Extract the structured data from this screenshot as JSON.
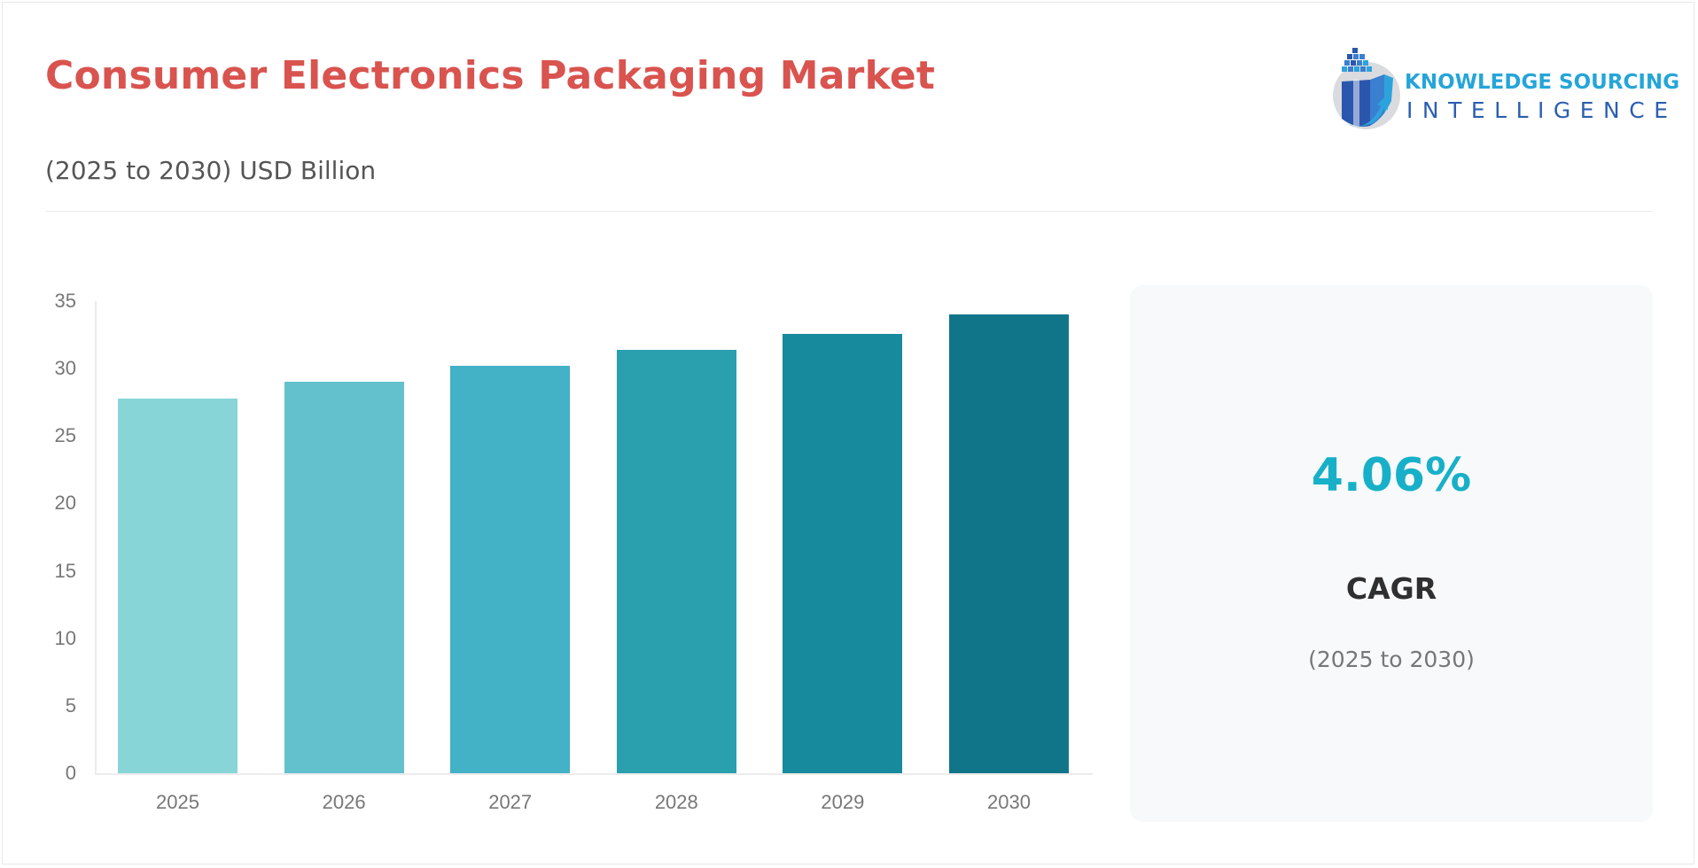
{
  "header": {
    "title": "Consumer Electronics Packaging Market",
    "subtitle": "(2025 to 2030) USD Billion",
    "title_color": "#d9534f"
  },
  "logo": {
    "line1": "KNOWLEDGE SOURCING",
    "line2": "INTELLIGENCE",
    "icon": "globe-bar-chart-arrow-icon"
  },
  "chart_data": {
    "type": "bar",
    "title": "Consumer Electronics Packaging Market",
    "subtitle": "(2025 to 2030) USD Billion",
    "xlabel": "",
    "ylabel": "USD Billion",
    "categories": [
      "2025",
      "2026",
      "2027",
      "2028",
      "2029",
      "2030"
    ],
    "values": [
      27.8,
      29.0,
      30.2,
      31.4,
      32.6,
      34.0
    ],
    "colors": [
      "#88d5d8",
      "#62c1cd",
      "#43b1c6",
      "#2a9fae",
      "#188a9d",
      "#11758a"
    ],
    "yticks": [
      "0",
      "5",
      "10",
      "15",
      "20",
      "25",
      "30",
      "35"
    ],
    "ylim": [
      0,
      35
    ],
    "grid": false,
    "legend": null
  },
  "cagr": {
    "value": "4.06%",
    "label": "CAGR",
    "period": "(2025 to 2030)",
    "value_color": "#17b0c8"
  }
}
